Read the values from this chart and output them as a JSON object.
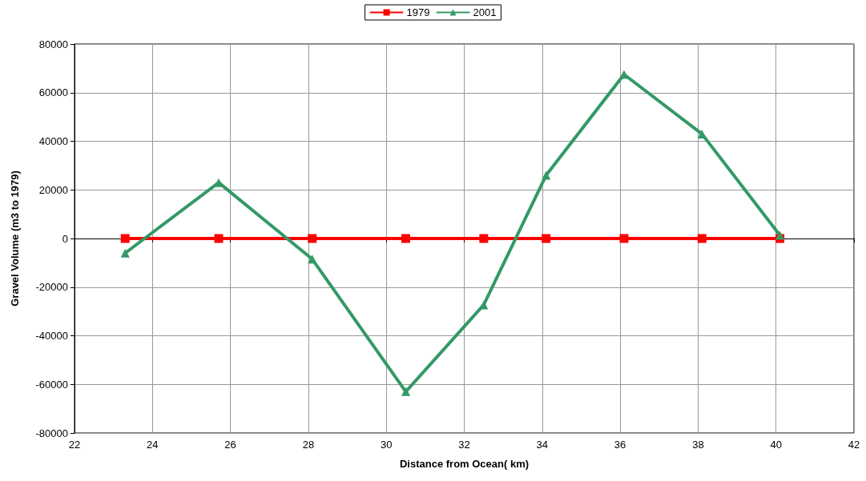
{
  "chart_data": {
    "type": "line",
    "xlabel": "Distance from Ocean( km)",
    "ylabel": "Gravel Volume (m3 to 1979)",
    "x": [
      23.3,
      25.7,
      28.1,
      30.5,
      32.5,
      34.1,
      36.1,
      38.1,
      40.1
    ],
    "series": [
      {
        "name": "1979",
        "color": "#ff0000",
        "marker": "square",
        "values": [
          0,
          0,
          0,
          0,
          0,
          0,
          0,
          0,
          0
        ]
      },
      {
        "name": "2001",
        "color": "#339966",
        "marker": "triangle",
        "values": [
          -6000,
          23000,
          -8500,
          -63000,
          -27300,
          26000,
          67500,
          43000,
          1300
        ]
      }
    ],
    "xlim": [
      22,
      42
    ],
    "xticks": [
      22,
      24,
      26,
      28,
      30,
      32,
      34,
      36,
      38,
      40,
      42
    ],
    "ylim": [
      -80000,
      80000
    ],
    "yticks": [
      -80000,
      -60000,
      -40000,
      -20000,
      0,
      20000,
      40000,
      60000,
      80000
    ],
    "grid": true,
    "legend": "top",
    "line_style": "solid"
  }
}
